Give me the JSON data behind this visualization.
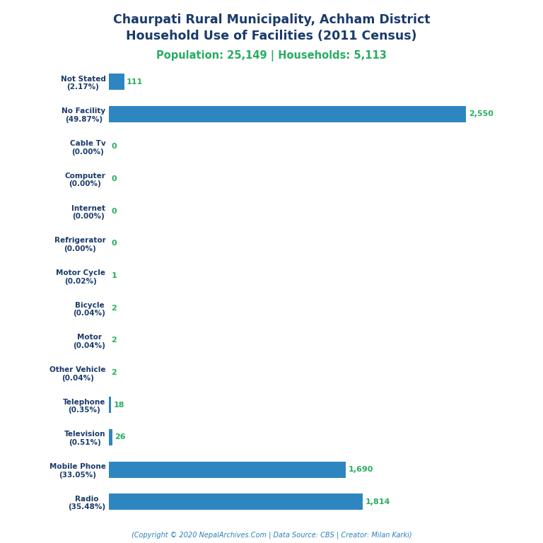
{
  "title_line1": "Chaurpati Rural Municipality, Achham District",
  "title_line2": "Household Use of Facilities (2011 Census)",
  "subtitle": "Population: 25,149 | Households: 5,113",
  "footer": "(Copyright © 2020 NepalArchives.Com | Data Source: CBS | Creator: Milan Karki)",
  "categories": [
    "Radio\n(35.48%)",
    "Mobile Phone\n(33.05%)",
    "Television\n(0.51%)",
    "Telephone\n(0.35%)",
    "Other Vehicle\n(0.04%)",
    "Motor\n(0.04%)",
    "Bicycle\n(0.04%)",
    "Motor Cycle\n(0.02%)",
    "Refrigerator\n(0.00%)",
    "Internet\n(0.00%)",
    "Computer\n(0.00%)",
    "Cable Tv\n(0.00%)",
    "No Facility\n(49.87%)",
    "Not Stated\n(2.17%)"
  ],
  "values": [
    1814,
    1690,
    26,
    18,
    2,
    2,
    2,
    1,
    0,
    0,
    0,
    0,
    2550,
    111
  ],
  "bar_color": "#2E86C1",
  "value_color": "#27AE60",
  "label_color": "#1A3A6B",
  "title_color": "#1A3A6B",
  "subtitle_color": "#27AE60",
  "footer_color": "#2980B9",
  "background_color": "#FFFFFF",
  "xlim": [
    0,
    2750
  ],
  "bar_height": 0.5
}
